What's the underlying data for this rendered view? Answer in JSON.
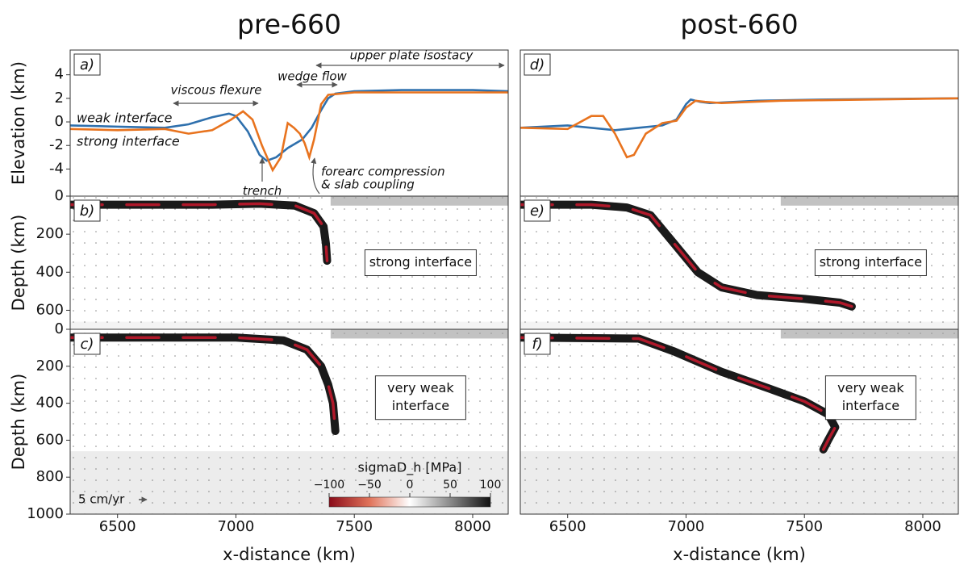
{
  "chart_data": [
    {
      "type": "line",
      "panel": "a)",
      "title": "pre-660",
      "ylabel": "Elevation (km)",
      "xlim": [
        6300,
        8150
      ],
      "ylim": [
        -6.3,
        6.1
      ],
      "yticks": [
        4,
        2,
        0,
        -2,
        -4
      ],
      "series": [
        {
          "name": "weak interface",
          "color": "#2f70ad",
          "x": [
            6300,
            6500,
            6700,
            6800,
            6900,
            6970,
            7000,
            7050,
            7100,
            7130,
            7170,
            7220,
            7280,
            7320,
            7360,
            7390,
            7420,
            7500,
            7700,
            8000,
            8150
          ],
          "values": [
            -0.3,
            -0.4,
            -0.5,
            -0.2,
            0.4,
            0.7,
            0.5,
            -0.8,
            -2.8,
            -3.3,
            -3.0,
            -2.2,
            -1.5,
            -0.5,
            1.0,
            2.0,
            2.4,
            2.6,
            2.7,
            2.7,
            2.6
          ]
        },
        {
          "name": "strong interface",
          "color": "#e8731e",
          "x": [
            6300,
            6500,
            6700,
            6800,
            6900,
            6980,
            7030,
            7070,
            7110,
            7155,
            7190,
            7219,
            7245,
            7270,
            7290,
            7310,
            7330,
            7360,
            7390,
            7500,
            8150
          ],
          "values": [
            -0.6,
            -0.7,
            -0.6,
            -1.0,
            -0.7,
            0.2,
            0.9,
            0.2,
            -2.0,
            -4.1,
            -3.0,
            -0.1,
            -0.5,
            -1.0,
            -1.8,
            -3.0,
            -1.5,
            1.5,
            2.3,
            2.5,
            2.5
          ]
        }
      ],
      "annotations": [
        "viscous flexure",
        "wedge flow",
        "upper plate isostacy",
        "trench",
        "forearc compression",
        "& slab coupling"
      ]
    },
    {
      "type": "field",
      "panel": "b)",
      "ylabel": "Depth (km)",
      "xlim": [
        6300,
        8150
      ],
      "ylim": [
        700,
        0
      ],
      "yticks": [
        0,
        200,
        400,
        600
      ],
      "label": [
        "strong interface"
      ],
      "slab": {
        "x": [
          6300,
          6900,
          7100,
          7250,
          7330,
          7370,
          7380,
          7385
        ],
        "values": [
          45,
          45,
          40,
          50,
          90,
          160,
          250,
          340
        ]
      }
    },
    {
      "type": "field",
      "panel": "c)",
      "ylabel": "Depth (km)",
      "xlabel": "x-distance (km)",
      "xlim": [
        6300,
        8150
      ],
      "ylim": [
        1000,
        0
      ],
      "yticks": [
        0,
        200,
        400,
        600,
        800,
        1000
      ],
      "xticks": [
        6500,
        7000,
        7500,
        8000
      ],
      "label": [
        "very weak",
        "interface"
      ],
      "scale": "5 cm/yr",
      "slab": {
        "x": [
          6300,
          7000,
          7200,
          7300,
          7360,
          7390,
          7410,
          7420
        ],
        "values": [
          45,
          45,
          60,
          110,
          200,
          300,
          400,
          550
        ]
      },
      "colorbar": {
        "label": "sigmaD_h [MPa]",
        "lim": [
          -100,
          100
        ],
        "ticks": [
          {
            "value": -100,
            "label": "−100"
          },
          {
            "value": -50,
            "label": "−50"
          },
          0,
          50,
          100
        ]
      }
    },
    {
      "type": "line",
      "panel": "d)",
      "title": "post-660",
      "xlim": [
        6300,
        8150
      ],
      "ylim": [
        -6.3,
        6.1
      ],
      "series": [
        {
          "name": "weak interface",
          "color": "#2f70ad",
          "x": [
            6300,
            6500,
            6700,
            6800,
            6900,
            6960,
            7000,
            7020,
            7060,
            7100,
            7300,
            7600,
            8150
          ],
          "values": [
            -0.5,
            -0.3,
            -0.7,
            -0.5,
            -0.3,
            0.2,
            1.5,
            1.9,
            1.7,
            1.6,
            1.8,
            1.9,
            2.0
          ]
        },
        {
          "name": "strong interface",
          "color": "#e8731e",
          "x": [
            6300,
            6500,
            6600,
            6650,
            6700,
            6750,
            6780,
            6830,
            6900,
            6960,
            7000,
            7040,
            7080,
            7150,
            7400,
            8150
          ],
          "values": [
            -0.5,
            -0.6,
            0.5,
            0.5,
            -1.0,
            -3.0,
            -2.8,
            -1.0,
            -0.1,
            0.1,
            1.2,
            1.8,
            1.7,
            1.6,
            1.8,
            2.0
          ]
        }
      ]
    },
    {
      "type": "field",
      "panel": "e)",
      "xlim": [
        6300,
        8150
      ],
      "ylim": [
        700,
        0
      ],
      "label": [
        "strong interface"
      ],
      "slab": {
        "x": [
          6300,
          6600,
          6750,
          6850,
          6950,
          7050,
          7150,
          7300,
          7500,
          7650,
          7700
        ],
        "values": [
          45,
          45,
          60,
          100,
          250,
          400,
          480,
          520,
          540,
          560,
          580
        ]
      }
    },
    {
      "type": "field",
      "panel": "f)",
      "xlabel": "x-distance (km)",
      "xlim": [
        6300,
        8150
      ],
      "ylim": [
        1000,
        0
      ],
      "xticks": [
        6500,
        7000,
        7500,
        8000
      ],
      "label": [
        "very weak",
        "interface"
      ],
      "slab": {
        "x": [
          6300,
          6800,
          6950,
          7150,
          7350,
          7500,
          7600,
          7630,
          7600,
          7580
        ],
        "values": [
          45,
          50,
          120,
          230,
          320,
          390,
          460,
          530,
          600,
          650
        ]
      }
    }
  ]
}
